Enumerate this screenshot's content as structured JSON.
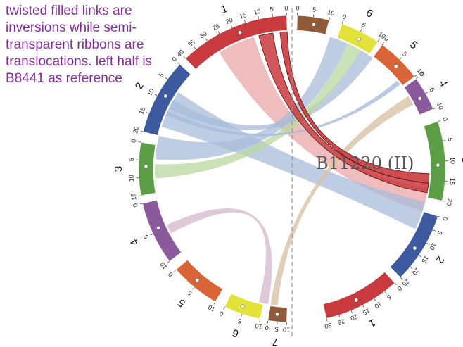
{
  "annotation": "twisted filled links are inversions while semi-transparent ribbons are translocations. left half is B8441 as reference",
  "genome_label": "B11220 (II)",
  "colors": {
    "chr1": "#c93a3e",
    "chr2": "#3d5aa0",
    "chr3": "#5c9e46",
    "chr4": "#8b5a9c",
    "chr5": "#d96437",
    "chr6": "#e3e23a",
    "chr7": "#8e5a37",
    "inversion": "#c93a3e",
    "translocation_red": "#e9a7a7",
    "translocation_blue": "#a8bcd9",
    "translocation_green": "#b9d8a0",
    "translocation_purple": "#d7bcd0",
    "translocation_tan": "#d9c2a6",
    "label_text": "#8b2aa0"
  },
  "chromosomes": [
    {
      "label": "1",
      "ticks": [
        "0",
        "5",
        "10",
        "15",
        "20",
        "25",
        "30",
        "35",
        "40"
      ]
    },
    {
      "label": "2",
      "ticks": [
        "0",
        "5",
        "10",
        "15",
        "20"
      ]
    },
    {
      "label": "3",
      "ticks": [
        "0",
        "5",
        "10",
        "15"
      ]
    },
    {
      "label": "4",
      "ticks": [
        "0",
        "5",
        "10"
      ]
    },
    {
      "label": "5",
      "ticks": [
        "0",
        "5",
        "10"
      ]
    },
    {
      "label": "6",
      "ticks": [
        "0",
        "5",
        "10"
      ]
    },
    {
      "label": "7",
      "ticks": [
        "0",
        "5",
        "10"
      ]
    },
    {
      "label": "7",
      "ticks": [
        "0",
        "5",
        "10"
      ]
    },
    {
      "label": "6",
      "ticks": [
        "0",
        "5",
        "10"
      ]
    },
    {
      "label": "5",
      "ticks": [
        "0",
        "5",
        "10"
      ]
    },
    {
      "label": "4",
      "ticks": [
        "0",
        "5",
        "10"
      ]
    },
    {
      "label": "3",
      "ticks": [
        "0",
        "5",
        "10",
        "15",
        "20"
      ]
    },
    {
      "label": "2",
      "ticks": [
        "0",
        "5",
        "10",
        "15",
        "20",
        "25"
      ]
    },
    {
      "label": "1",
      "ticks": [
        "0",
        "5",
        "10",
        "15",
        "20",
        "25",
        "30"
      ]
    }
  ]
}
